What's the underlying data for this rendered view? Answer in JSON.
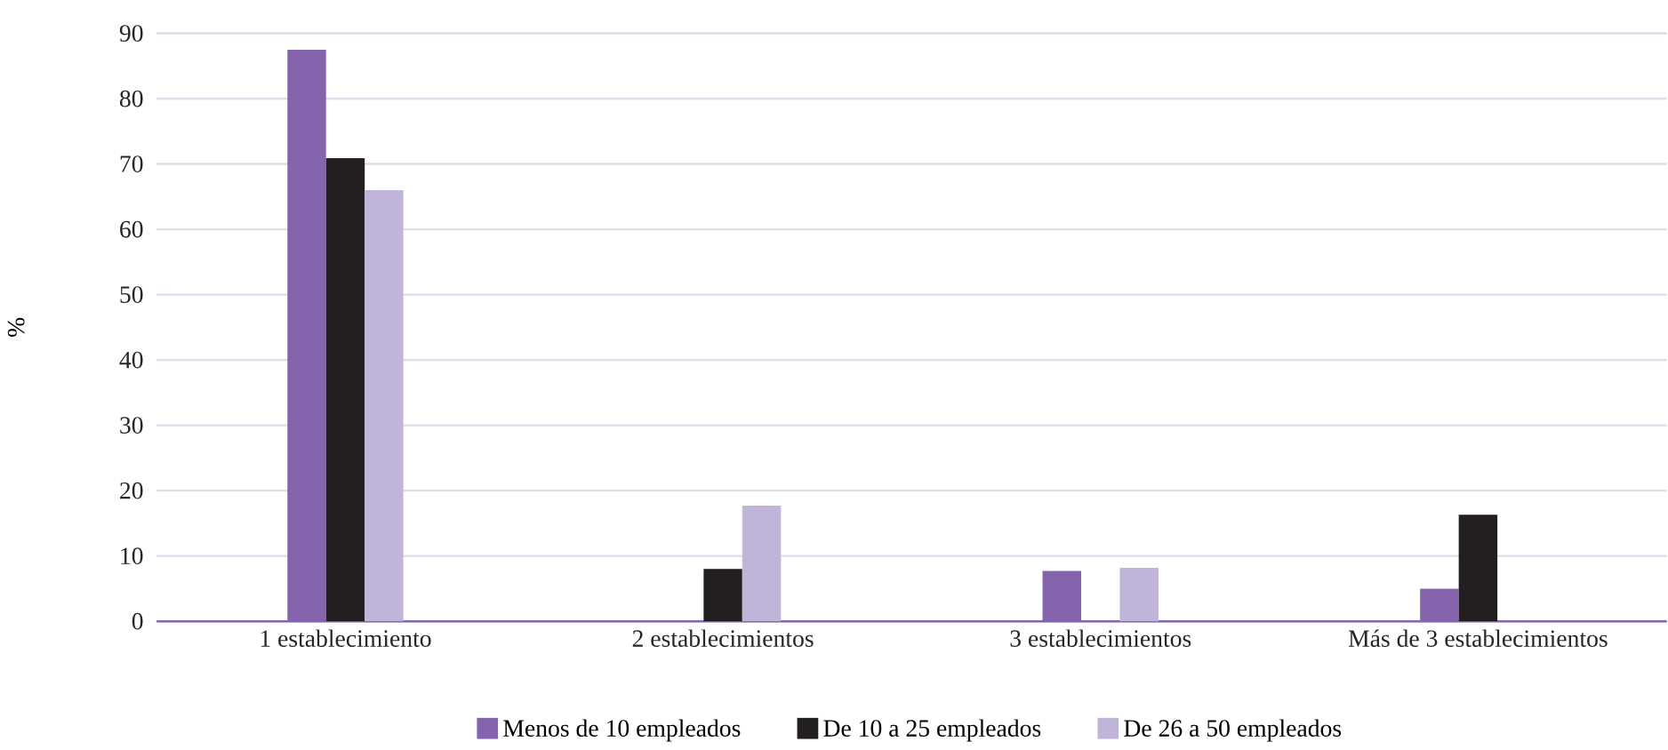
{
  "chart_data": {
    "type": "bar",
    "ylabel": "%",
    "categories": [
      "1 establecimiento",
      "2 establecimientos",
      "3 establecimientos",
      "Más de 3 establecimientos"
    ],
    "series": [
      {
        "name": "Menos de 10 empleados",
        "color": "#8364ad",
        "values": [
          87.5,
          0,
          7.7,
          5.0
        ]
      },
      {
        "name": "De 10 a 25 empleados",
        "color": "#231f20",
        "values": [
          70.9,
          8.0,
          0,
          16.3
        ]
      },
      {
        "name": "De 26 a 50 empleados",
        "color": "#c0b4d8",
        "values": [
          66.0,
          17.7,
          8.2,
          0
        ]
      }
    ],
    "ylim": [
      0,
      90
    ],
    "yticks": [
      0,
      10,
      20,
      30,
      40,
      50,
      60,
      70,
      80,
      90
    ],
    "grid": "y",
    "legend": "bottom"
  }
}
